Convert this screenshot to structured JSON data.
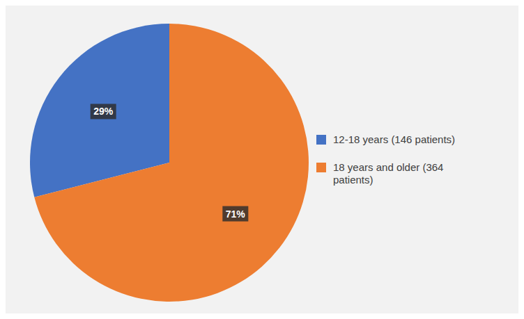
{
  "chart_data": {
    "type": "pie",
    "categories": [
      "12-18 years (146 patients)",
      "18 years and older (364\npatients)"
    ],
    "values": [
      29,
      71
    ],
    "value_labels": [
      "29%",
      "71%"
    ],
    "colors": [
      "#4472C4",
      "#ED7D31"
    ],
    "data_labels": true,
    "legend": "right"
  }
}
